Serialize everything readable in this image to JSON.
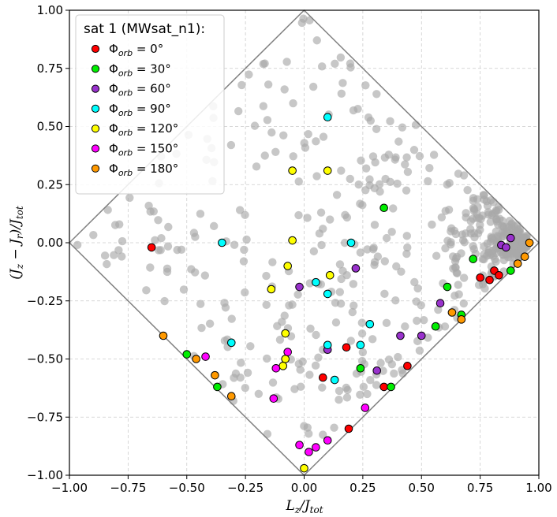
{
  "chart_data": {
    "type": "scatter",
    "xlabel": "L_z/J_tot",
    "ylabel": "(J_z − J_r)/J_tot",
    "xlim": [
      -1.0,
      1.0
    ],
    "ylim": [
      -1.0,
      1.0
    ],
    "grid": true,
    "xticks": [
      "−1.00",
      "−0.75",
      "−0.50",
      "−0.25",
      "0.00",
      "0.25",
      "0.50",
      "0.75",
      "1.00"
    ],
    "yticks": [
      "1.00",
      "0.75",
      "0.50",
      "0.25",
      "0.00",
      "−0.25",
      "−0.50",
      "−0.75",
      "−1.00"
    ],
    "xtick_values": [
      -1,
      -0.75,
      -0.5,
      -0.25,
      0,
      0.25,
      0.5,
      0.75,
      1
    ],
    "ytick_values": [
      1,
      0.75,
      0.5,
      0.25,
      0,
      -0.25,
      -0.5,
      -0.75,
      -1
    ],
    "legend": {
      "title": "sat 1 (MWsat_n1):",
      "location": "upper-left",
      "entries": [
        {
          "label": "= 0°",
          "phi": "0",
          "color": "#ff0000"
        },
        {
          "label": "= 30°",
          "phi": "30",
          "color": "#00ee00"
        },
        {
          "label": "= 60°",
          "phi": "60",
          "color": "#9932cc"
        },
        {
          "label": "= 90°",
          "phi": "90",
          "color": "#00ffff"
        },
        {
          "label": "= 120°",
          "phi": "120",
          "color": "#ffff00"
        },
        {
          "label": "= 150°",
          "phi": "150",
          "color": "#ff00ff"
        },
        {
          "label": "= 180°",
          "phi": "180",
          "color": "#ff9900"
        }
      ]
    },
    "boundary": [
      [
        -1,
        0
      ],
      [
        0,
        1
      ],
      [
        1,
        0
      ],
      [
        0,
        -1
      ]
    ],
    "series": [
      {
        "name": "Φorb = 0°",
        "color": "#ff0000",
        "points": [
          [
            -0.65,
            -0.02
          ],
          [
            0.18,
            -0.45
          ],
          [
            0.08,
            -0.58
          ],
          [
            0.44,
            -0.53
          ],
          [
            0.34,
            -0.62
          ],
          [
            0.19,
            -0.8
          ],
          [
            0.75,
            -0.15
          ],
          [
            0.79,
            -0.16
          ],
          [
            0.81,
            -0.12
          ],
          [
            0.83,
            -0.14
          ]
        ]
      },
      {
        "name": "Φorb = 30°",
        "color": "#00ee00",
        "points": [
          [
            0.34,
            0.15
          ],
          [
            0.72,
            -0.07
          ],
          [
            0.61,
            -0.19
          ],
          [
            0.56,
            -0.36
          ],
          [
            0.67,
            -0.31
          ],
          [
            0.24,
            -0.54
          ],
          [
            0.37,
            -0.62
          ],
          [
            -0.5,
            -0.48
          ],
          [
            -0.37,
            -0.62
          ],
          [
            0.88,
            -0.12
          ]
        ]
      },
      {
        "name": "Φorb = 60°",
        "color": "#9932cc",
        "points": [
          [
            0.88,
            0.02
          ],
          [
            0.84,
            -0.01
          ],
          [
            0.86,
            -0.02
          ],
          [
            -0.02,
            -0.19
          ],
          [
            0.22,
            -0.11
          ],
          [
            0.41,
            -0.4
          ],
          [
            0.5,
            -0.4
          ],
          [
            0.58,
            -0.26
          ],
          [
            0.31,
            -0.55
          ],
          [
            0.1,
            -0.46
          ]
        ]
      },
      {
        "name": "Φorb = 90°",
        "color": "#00ffff",
        "points": [
          [
            0.1,
            0.54
          ],
          [
            -0.35,
            0.0
          ],
          [
            0.2,
            0.0
          ],
          [
            0.05,
            -0.17
          ],
          [
            0.1,
            -0.22
          ],
          [
            0.28,
            -0.35
          ],
          [
            0.1,
            -0.44
          ],
          [
            0.24,
            -0.44
          ],
          [
            0.13,
            -0.59
          ],
          [
            -0.31,
            -0.43
          ]
        ]
      },
      {
        "name": "Φorb = 120°",
        "color": "#ffff00",
        "points": [
          [
            -0.05,
            0.31
          ],
          [
            0.1,
            0.31
          ],
          [
            -0.05,
            0.01
          ],
          [
            -0.07,
            -0.1
          ],
          [
            0.11,
            -0.14
          ],
          [
            -0.14,
            -0.2
          ],
          [
            -0.08,
            -0.39
          ],
          [
            -0.08,
            -0.5
          ],
          [
            -0.09,
            -0.53
          ],
          [
            0.0,
            -0.97
          ]
        ]
      },
      {
        "name": "Φorb = 150°",
        "color": "#ff00ff",
        "points": [
          [
            -0.42,
            -0.49
          ],
          [
            -0.12,
            -0.54
          ],
          [
            -0.07,
            -0.47
          ],
          [
            -0.13,
            -0.67
          ],
          [
            -0.02,
            -0.87
          ],
          [
            0.02,
            -0.9
          ],
          [
            0.05,
            -0.88
          ],
          [
            0.1,
            -0.85
          ],
          [
            0.26,
            -0.71
          ]
        ]
      },
      {
        "name": "Φorb = 180°",
        "color": "#ff9900",
        "points": [
          [
            -0.6,
            -0.4
          ],
          [
            -0.46,
            -0.5
          ],
          [
            -0.38,
            -0.57
          ],
          [
            -0.31,
            -0.66
          ],
          [
            0.63,
            -0.3
          ],
          [
            0.67,
            -0.33
          ],
          [
            0.91,
            -0.09
          ],
          [
            0.94,
            -0.06
          ],
          [
            0.96,
            0.0
          ]
        ]
      }
    ]
  }
}
